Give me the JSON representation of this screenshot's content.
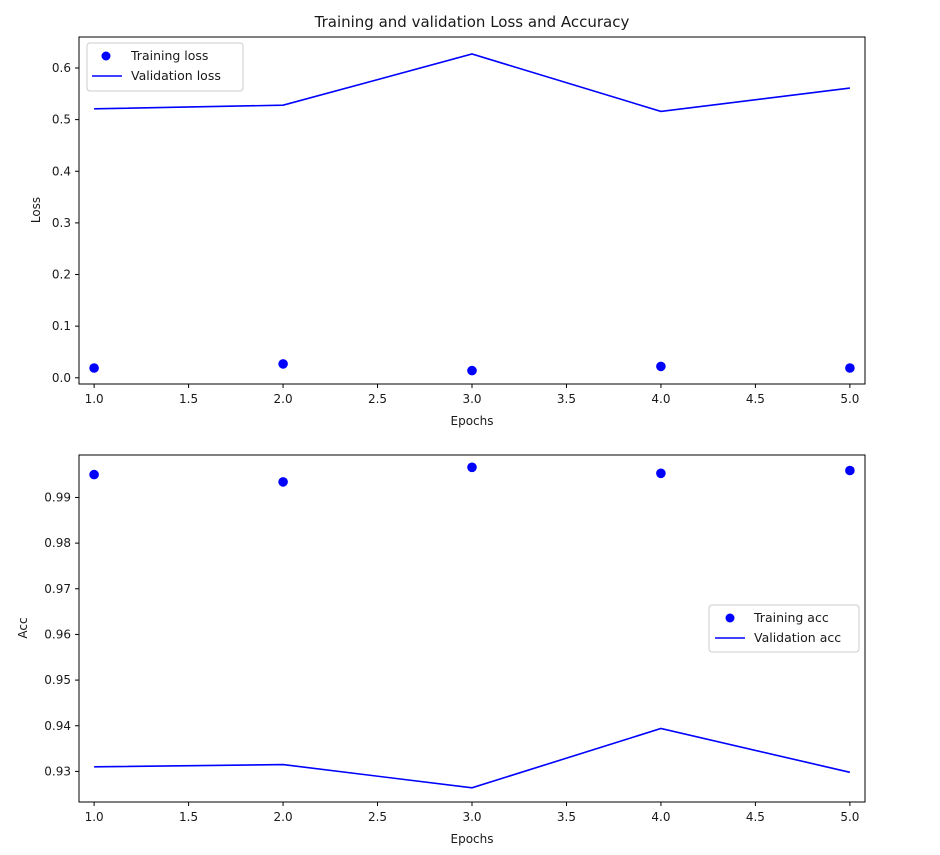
{
  "figure": {
    "title": "Training and validation Loss and Accuracy"
  },
  "chart_data": [
    {
      "type": "line",
      "title": "Training and validation Loss and Accuracy",
      "xlabel": "Epochs",
      "ylabel": "Loss",
      "xlim": [
        0.92,
        5.08
      ],
      "ylim": [
        -0.012,
        0.66
      ],
      "xticks": [
        1.0,
        1.5,
        2.0,
        2.5,
        3.0,
        3.5,
        4.0,
        4.5,
        5.0
      ],
      "xtick_labels": [
        "1.0",
        "1.5",
        "2.0",
        "2.5",
        "3.0",
        "3.5",
        "4.0",
        "4.5",
        "5.0"
      ],
      "yticks": [
        0.0,
        0.1,
        0.2,
        0.3,
        0.4,
        0.5,
        0.6
      ],
      "ytick_labels": [
        "0.0",
        "0.1",
        "0.2",
        "0.3",
        "0.4",
        "0.5",
        "0.6"
      ],
      "legend_position": "upper left",
      "grid": false,
      "x": [
        1,
        2,
        3,
        4,
        5
      ],
      "series": [
        {
          "name": "Training loss",
          "style": "points",
          "color": "#0000ff",
          "values": [
            0.019,
            0.027,
            0.014,
            0.022,
            0.019
          ]
        },
        {
          "name": "Validation loss",
          "style": "line",
          "color": "#0000ff",
          "values": [
            0.521,
            0.528,
            0.627,
            0.516,
            0.561
          ]
        }
      ]
    },
    {
      "type": "line",
      "title": "",
      "xlabel": "Epochs",
      "ylabel": "Acc",
      "xlim": [
        0.92,
        5.08
      ],
      "ylim": [
        0.9233,
        0.9993
      ],
      "xticks": [
        1.0,
        1.5,
        2.0,
        2.5,
        3.0,
        3.5,
        4.0,
        4.5,
        5.0
      ],
      "xtick_labels": [
        "1.0",
        "1.5",
        "2.0",
        "2.5",
        "3.0",
        "3.5",
        "4.0",
        "4.5",
        "5.0"
      ],
      "yticks": [
        0.93,
        0.94,
        0.95,
        0.96,
        0.97,
        0.98,
        0.99
      ],
      "ytick_labels": [
        "0.93",
        "0.94",
        "0.95",
        "0.96",
        "0.97",
        "0.98",
        "0.99"
      ],
      "legend_position": "center right",
      "grid": false,
      "x": [
        1,
        2,
        3,
        4,
        5
      ],
      "series": [
        {
          "name": "Training acc",
          "style": "points",
          "color": "#0000ff",
          "values": [
            0.995,
            0.9934,
            0.9966,
            0.9953,
            0.9959
          ]
        },
        {
          "name": "Validation acc",
          "style": "line",
          "color": "#0000ff",
          "values": [
            0.931,
            0.9315,
            0.9264,
            0.9394,
            0.9298
          ]
        }
      ]
    }
  ]
}
